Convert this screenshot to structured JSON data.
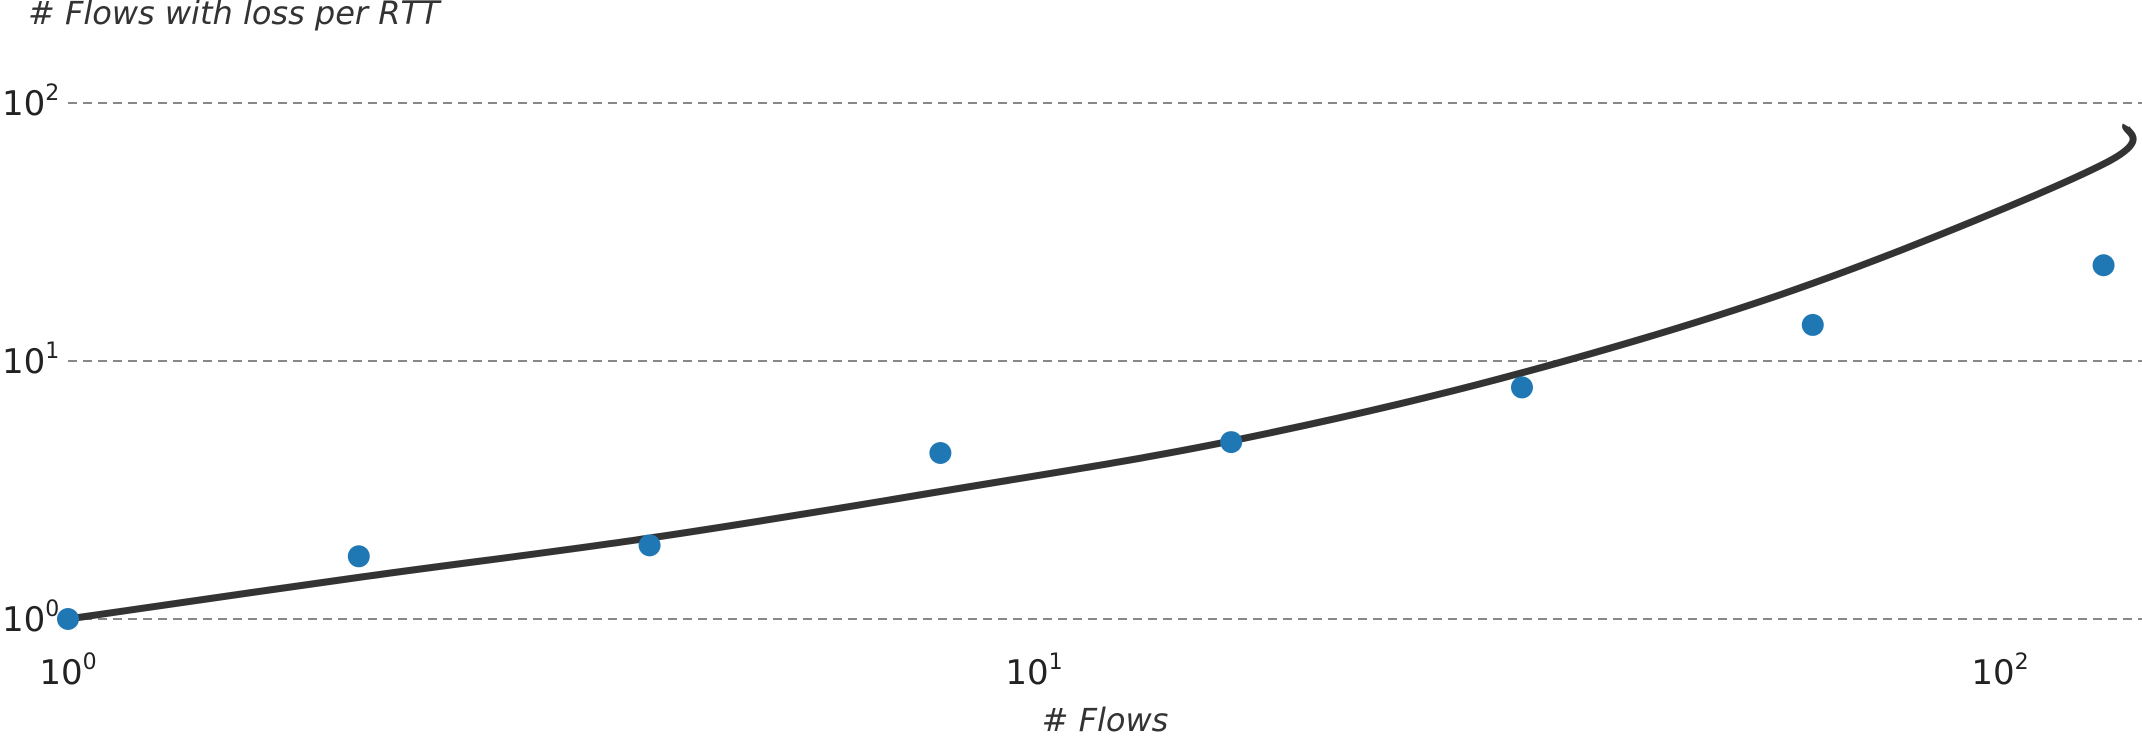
{
  "chart_data": {
    "type": "scatter",
    "title": "",
    "xlabel": "# Flows",
    "ylabel": "# Flows with loss per RTT",
    "xscale": "log",
    "yscale": "log",
    "xlim": [
      1,
      135
    ],
    "ylim": [
      1,
      120
    ],
    "grid": "horizontal dashed",
    "x_ticks": [
      {
        "base": "10",
        "exp": "0",
        "value": 1
      },
      {
        "base": "10",
        "exp": "1",
        "value": 10
      },
      {
        "base": "10",
        "exp": "2",
        "value": 100
      }
    ],
    "y_ticks": [
      {
        "base": "10",
        "exp": "0",
        "value": 1
      },
      {
        "base": "10",
        "exp": "1",
        "value": 10
      },
      {
        "base": "10",
        "exp": "2",
        "value": 100
      }
    ],
    "series": [
      {
        "kind": "points",
        "color": "#1f77b4",
        "x": [
          1,
          2,
          4,
          8,
          16,
          32,
          64,
          128
        ],
        "y": [
          1,
          1.75,
          1.93,
          4.4,
          4.85,
          7.9,
          13.8,
          23.5
        ]
      },
      {
        "kind": "line",
        "color": "#333333",
        "x": [
          1,
          2,
          4,
          8,
          16,
          32,
          64,
          128,
          135
        ],
        "y": [
          1,
          1.45,
          2.06,
          3.12,
          4.9,
          9.0,
          20.0,
          58.0,
          82.0
        ]
      }
    ]
  }
}
